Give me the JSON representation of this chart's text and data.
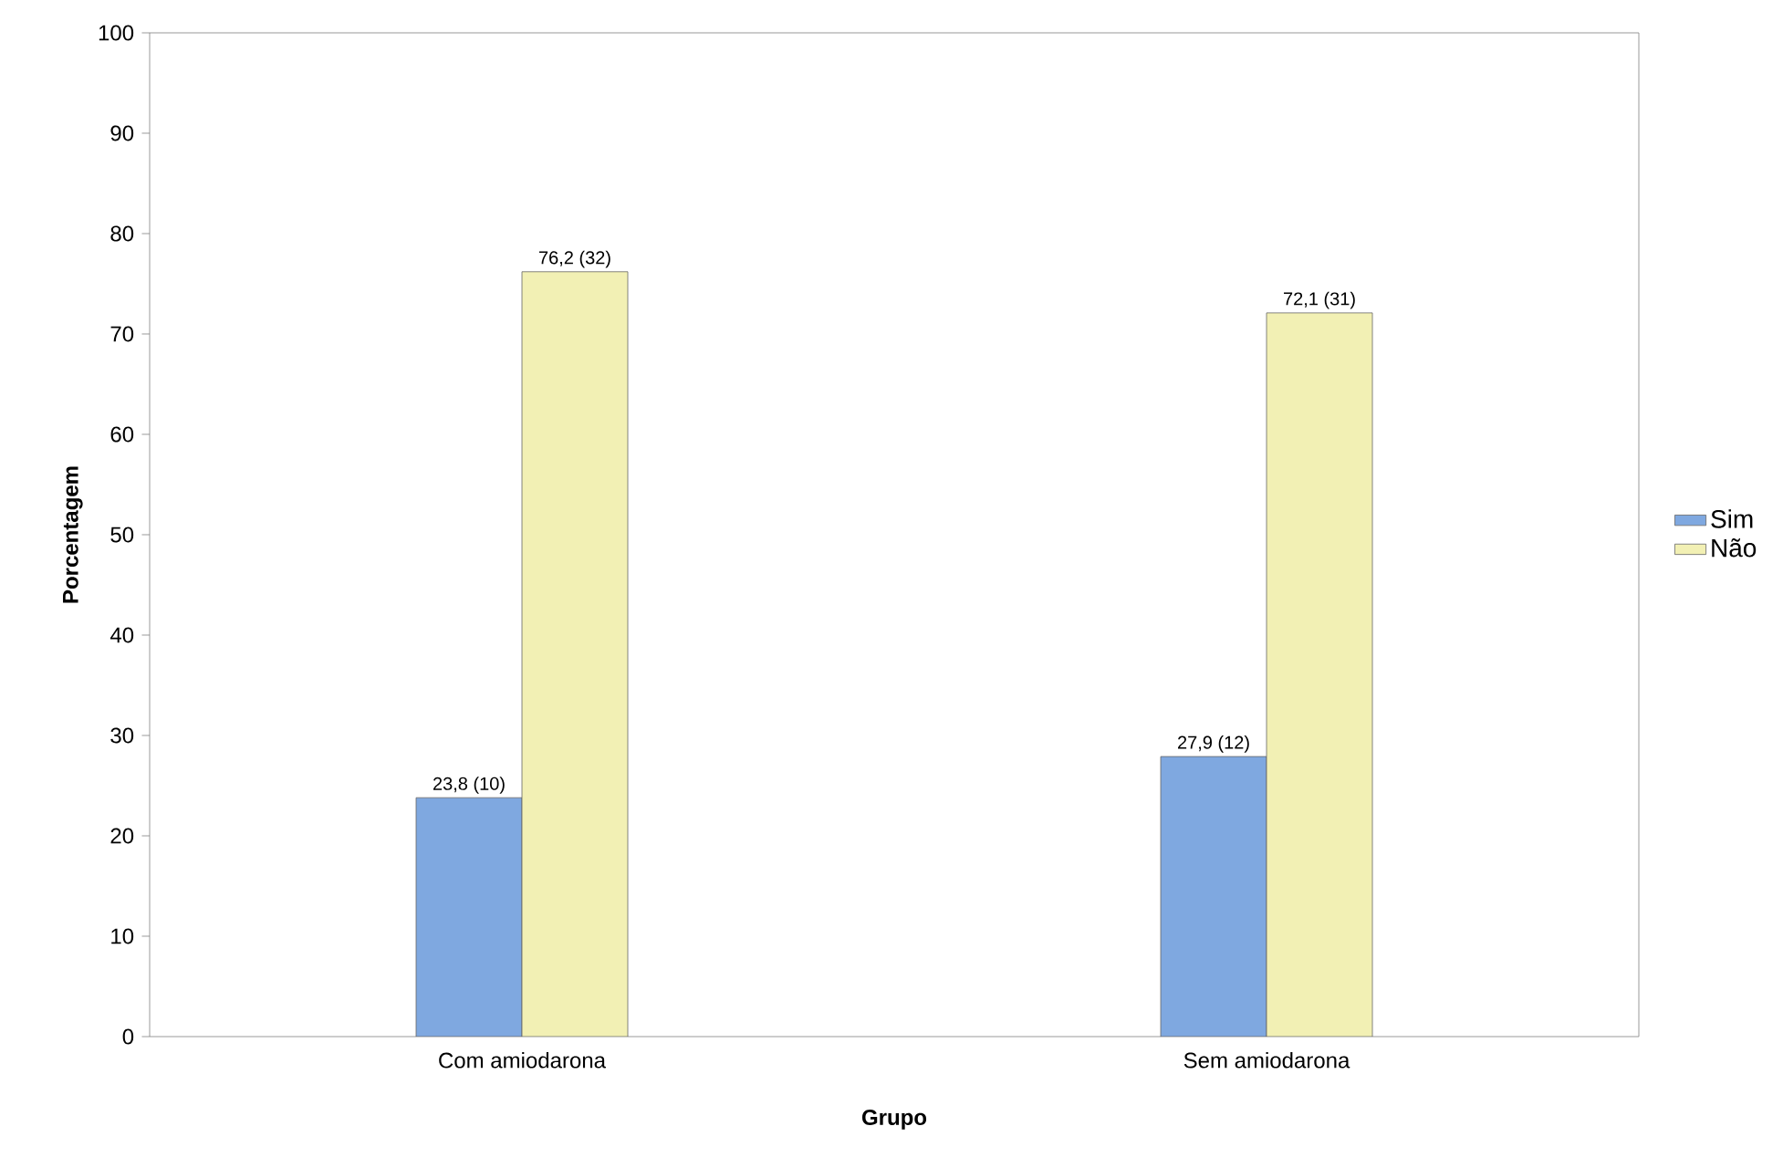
{
  "chart_data": {
    "type": "bar",
    "xlabel": "Grupo",
    "ylabel": "Porcentagem",
    "categories": [
      "Com amiodarona",
      "Sem amiodarona"
    ],
    "series": [
      {
        "name": "Sim",
        "color": "#7fa8e0",
        "values": [
          23.8,
          27.9
        ],
        "value_labels": [
          "23,8 (10)",
          "27,9 (12)"
        ]
      },
      {
        "name": "Não",
        "color": "#f2f0b4",
        "values": [
          76.2,
          72.1
        ],
        "value_labels": [
          "76,2 (32)",
          "72,1 (31)"
        ]
      }
    ],
    "ylim": [
      0,
      100
    ],
    "yticks": [
      0,
      10,
      20,
      30,
      40,
      50,
      60,
      70,
      80,
      90,
      100
    ],
    "legend": "right"
  }
}
